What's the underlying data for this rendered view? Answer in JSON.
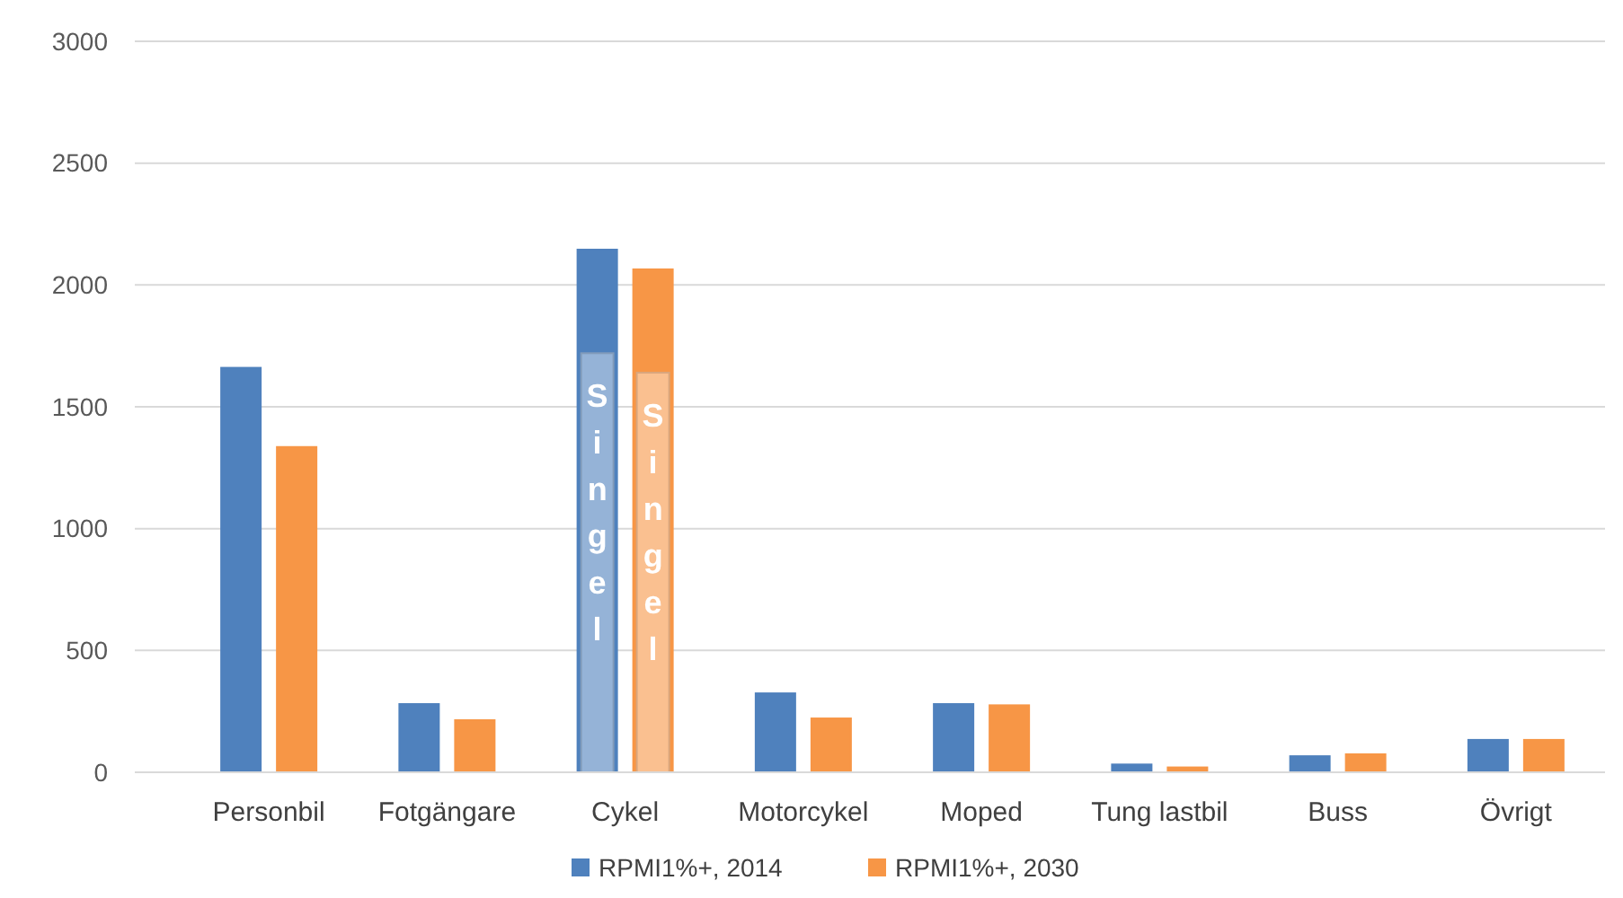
{
  "chart_data": {
    "type": "bar",
    "categories": [
      "Personbil",
      "Fotgängare",
      "Cykel",
      "Motorcykel",
      "Moped",
      "Tung lastbil",
      "Buss",
      "Övrigt"
    ],
    "series": [
      {
        "name": "RPMI1%+, 2014",
        "color": "#4f81bd",
        "values": [
          1660,
          280,
          2145,
          324,
          280,
          32,
          66,
          133
        ]
      },
      {
        "name": "RPMI1%+, 2030",
        "color": "#f79646",
        "values": [
          1335,
          214,
          2064,
          221,
          275,
          20,
          74,
          133
        ]
      },
      {
        "name": "Singel",
        "color": "#95b3d7",
        "values": [
          null,
          null,
          1720,
          null,
          null,
          null,
          null,
          null
        ]
      },
      {
        "name": "Singel",
        "color": "#fac090",
        "values": [
          null,
          null,
          1640,
          null,
          null,
          null,
          null,
          null
        ]
      }
    ],
    "ylim": [
      0,
      3000
    ],
    "yticks": [
      0,
      500,
      1000,
      1500,
      2000,
      2500,
      3000
    ],
    "grid": "y",
    "legend": "bottom"
  }
}
